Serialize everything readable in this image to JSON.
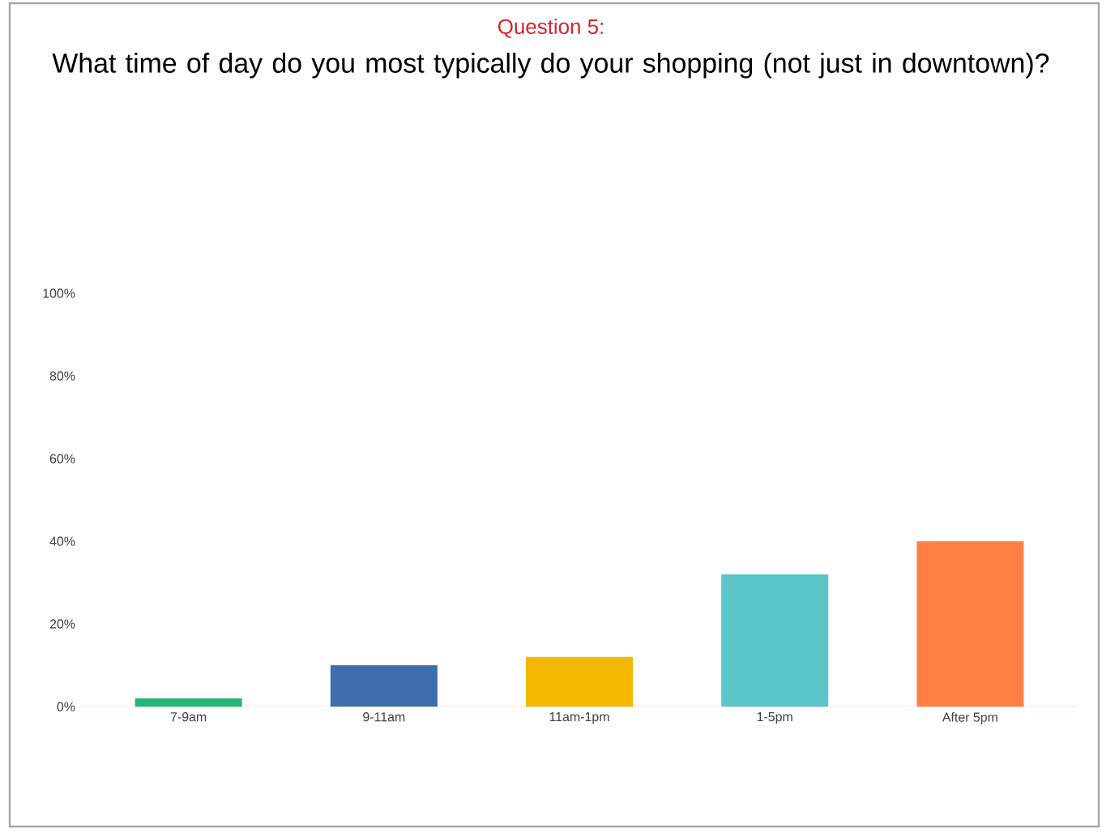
{
  "chart_data": {
    "type": "bar",
    "title": "Question 5:",
    "subtitle": "What time of day do you most typically do your shopping (not just in downtown)?",
    "categories": [
      "7-9am",
      "9-11am",
      "11am-1pm",
      "1-5pm",
      "After 5pm"
    ],
    "values": [
      2,
      10,
      12,
      32,
      40
    ],
    "colors": [
      "#22b573",
      "#3e6db0",
      "#f5b800",
      "#5bc4c8",
      "#ff7f45"
    ],
    "ylim": [
      0,
      100
    ],
    "yticks": [
      {
        "value": 0,
        "label": "0%"
      },
      {
        "value": 20,
        "label": "20%"
      },
      {
        "value": 40,
        "label": "40%"
      },
      {
        "value": 60,
        "label": "60%"
      },
      {
        "value": 80,
        "label": "80%"
      },
      {
        "value": 100,
        "label": "100%"
      }
    ],
    "ylabel": null
  }
}
